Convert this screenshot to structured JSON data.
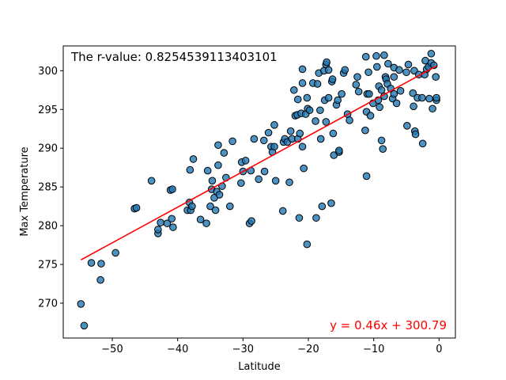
{
  "chart_data": {
    "type": "scatter",
    "title": "",
    "xlabel": "Latitude",
    "ylabel": "Max Temperature",
    "xlim": [
      -57.5,
      2.5
    ],
    "ylim": [
      265.5,
      303.2
    ],
    "xticks": [
      -50,
      -40,
      -30,
      -20,
      -10,
      0
    ],
    "yticks": [
      270,
      275,
      280,
      285,
      290,
      295,
      300
    ],
    "grid": false,
    "annotations": {
      "rvalue_text": "The r-value: 0.8254539113403101",
      "equation_text": "y = 0.46x + 300.79",
      "equation_color": "#ff0000"
    },
    "regression": {
      "slope": 0.46,
      "intercept": 300.79,
      "x_range": [
        -54.8,
        -0.4
      ],
      "color": "#ff0000"
    },
    "marker_fill": "#1f77b4",
    "marker_edge": "#000000",
    "series": [
      {
        "points": [
          [
            -54.8,
            269.9
          ],
          [
            -54.3,
            267.1
          ],
          [
            -53.2,
            275.2
          ],
          [
            -51.7,
            275.1
          ],
          [
            -51.8,
            273.0
          ],
          [
            -49.5,
            276.5
          ],
          [
            -46.6,
            282.2
          ],
          [
            -46.3,
            282.3
          ],
          [
            -44.0,
            285.8
          ],
          [
            -43.0,
            279.0
          ],
          [
            -43.0,
            279.5
          ],
          [
            -42.6,
            280.4
          ],
          [
            -41.6,
            280.3
          ],
          [
            -41.1,
            284.6
          ],
          [
            -40.8,
            284.7
          ],
          [
            -40.9,
            280.9
          ],
          [
            -40.7,
            279.8
          ],
          [
            -38.5,
            282.0
          ],
          [
            -38.2,
            283.0
          ],
          [
            -38.0,
            282.0
          ],
          [
            -37.8,
            282.5
          ],
          [
            -38.1,
            287.2
          ],
          [
            -37.6,
            288.6
          ],
          [
            -36.5,
            280.8
          ],
          [
            -35.6,
            280.3
          ],
          [
            -35.4,
            287.1
          ],
          [
            -35.0,
            282.5
          ],
          [
            -34.8,
            284.7
          ],
          [
            -34.7,
            285.8
          ],
          [
            -34.4,
            283.6
          ],
          [
            -34.2,
            282.0
          ],
          [
            -34.0,
            284.4
          ],
          [
            -33.8,
            287.8
          ],
          [
            -33.8,
            290.4
          ],
          [
            -33.6,
            284.0
          ],
          [
            -33.2,
            285.1
          ],
          [
            -32.9,
            289.4
          ],
          [
            -32.6,
            286.2
          ],
          [
            -32.0,
            282.5
          ],
          [
            -31.6,
            290.9
          ],
          [
            -30.3,
            285.5
          ],
          [
            -30.2,
            288.2
          ],
          [
            -30.0,
            287.0
          ],
          [
            -29.6,
            288.4
          ],
          [
            -29.0,
            280.3
          ],
          [
            -28.7,
            280.6
          ],
          [
            -28.3,
            291.2
          ],
          [
            -28.8,
            287.1
          ],
          [
            -27.6,
            286.0
          ],
          [
            -26.8,
            291.0
          ],
          [
            -26.7,
            287.0
          ],
          [
            -26.1,
            292.0
          ],
          [
            -25.7,
            290.2
          ],
          [
            -25.5,
            289.5
          ],
          [
            -25.2,
            293.0
          ],
          [
            -25.0,
            285.8
          ],
          [
            -25.2,
            290.2
          ],
          [
            -23.9,
            281.9
          ],
          [
            -23.8,
            290.8
          ],
          [
            -23.6,
            291.2
          ],
          [
            -23.2,
            290.8
          ],
          [
            -22.9,
            285.6
          ],
          [
            -22.7,
            292.2
          ],
          [
            -22.5,
            291.2
          ],
          [
            -22.2,
            297.5
          ],
          [
            -22.0,
            294.2
          ],
          [
            -21.7,
            294.3
          ],
          [
            -21.6,
            291.2
          ],
          [
            -21.6,
            296.3
          ],
          [
            -21.4,
            281.0
          ],
          [
            -21.3,
            291.9
          ],
          [
            -21.1,
            294.5
          ],
          [
            -20.9,
            290.2
          ],
          [
            -20.9,
            298.4
          ],
          [
            -20.9,
            300.2
          ],
          [
            -20.7,
            287.4
          ],
          [
            -20.4,
            294.4
          ],
          [
            -20.2,
            296.5
          ],
          [
            -20.1,
            295.1
          ],
          [
            -20.2,
            277.6
          ],
          [
            -19.8,
            294.9
          ],
          [
            -19.3,
            298.4
          ],
          [
            -18.9,
            293.5
          ],
          [
            -18.8,
            281.0
          ],
          [
            -18.6,
            298.3
          ],
          [
            -18.4,
            299.7
          ],
          [
            -18.2,
            294.9
          ],
          [
            -18.1,
            291.2
          ],
          [
            -17.9,
            282.5
          ],
          [
            -17.6,
            300.0
          ],
          [
            -17.5,
            296.2
          ],
          [
            -17.3,
            293.4
          ],
          [
            -17.3,
            300.8
          ],
          [
            -17.2,
            301.1
          ],
          [
            -16.9,
            300.1
          ],
          [
            -16.9,
            296.5
          ],
          [
            -16.5,
            282.9
          ],
          [
            -16.4,
            298.6
          ],
          [
            -16.3,
            298.9
          ],
          [
            -16.2,
            291.9
          ],
          [
            -16.1,
            289.1
          ],
          [
            -15.7,
            295.6
          ],
          [
            -15.5,
            296.2
          ],
          [
            -15.3,
            289.5
          ],
          [
            -15.3,
            289.7
          ],
          [
            -14.9,
            297.0
          ],
          [
            -14.6,
            299.7
          ],
          [
            -14.4,
            300.1
          ],
          [
            -14.0,
            294.4
          ],
          [
            -13.7,
            293.6
          ],
          [
            -12.7,
            298.2
          ],
          [
            -12.5,
            299.2
          ],
          [
            -12.3,
            297.3
          ],
          [
            -11.3,
            292.3
          ],
          [
            -11.1,
            286.4
          ],
          [
            -11.2,
            301.8
          ],
          [
            -11.1,
            294.7
          ],
          [
            -11.0,
            297.0
          ],
          [
            -10.8,
            299.8
          ],
          [
            -10.7,
            297.0
          ],
          [
            -10.5,
            294.2
          ],
          [
            -10.1,
            295.8
          ],
          [
            -9.6,
            301.9
          ],
          [
            -9.5,
            300.5
          ],
          [
            -9.3,
            296.2
          ],
          [
            -9.2,
            298.0
          ],
          [
            -9.1,
            295.3
          ],
          [
            -8.8,
            297.5
          ],
          [
            -8.8,
            291.0
          ],
          [
            -8.6,
            289.9
          ],
          [
            -8.4,
            302.0
          ],
          [
            -8.4,
            296.7
          ],
          [
            -8.2,
            299.2
          ],
          [
            -8.1,
            298.9
          ],
          [
            -7.9,
            298.3
          ],
          [
            -7.8,
            300.9
          ],
          [
            -7.4,
            297.7
          ],
          [
            -7.1,
            296.4
          ],
          [
            -6.9,
            300.4
          ],
          [
            -6.9,
            297.0
          ],
          [
            -6.9,
            299.2
          ],
          [
            -6.5,
            295.8
          ],
          [
            -6.1,
            300.1
          ],
          [
            -5.9,
            297.4
          ],
          [
            -5.0,
            299.8
          ],
          [
            -4.9,
            292.9
          ],
          [
            -4.7,
            300.8
          ],
          [
            -4.0,
            297.1
          ],
          [
            -3.9,
            295.4
          ],
          [
            -3.8,
            300.0
          ],
          [
            -3.7,
            292.2
          ],
          [
            -3.6,
            291.8
          ],
          [
            -3.3,
            296.5
          ],
          [
            -3.1,
            299.5
          ],
          [
            -2.6,
            296.5
          ],
          [
            -2.5,
            290.6
          ],
          [
            -2.2,
            299.5
          ],
          [
            -2.1,
            301.3
          ],
          [
            -1.9,
            300.2
          ],
          [
            -1.6,
            300.5
          ],
          [
            -1.5,
            296.4
          ],
          [
            -1.2,
            302.2
          ],
          [
            -1.2,
            301.0
          ],
          [
            -1.0,
            295.1
          ],
          [
            -0.8,
            300.7
          ],
          [
            -0.5,
            299.2
          ],
          [
            -0.4,
            296.2
          ],
          [
            -0.4,
            296.5
          ]
        ]
      }
    ]
  }
}
